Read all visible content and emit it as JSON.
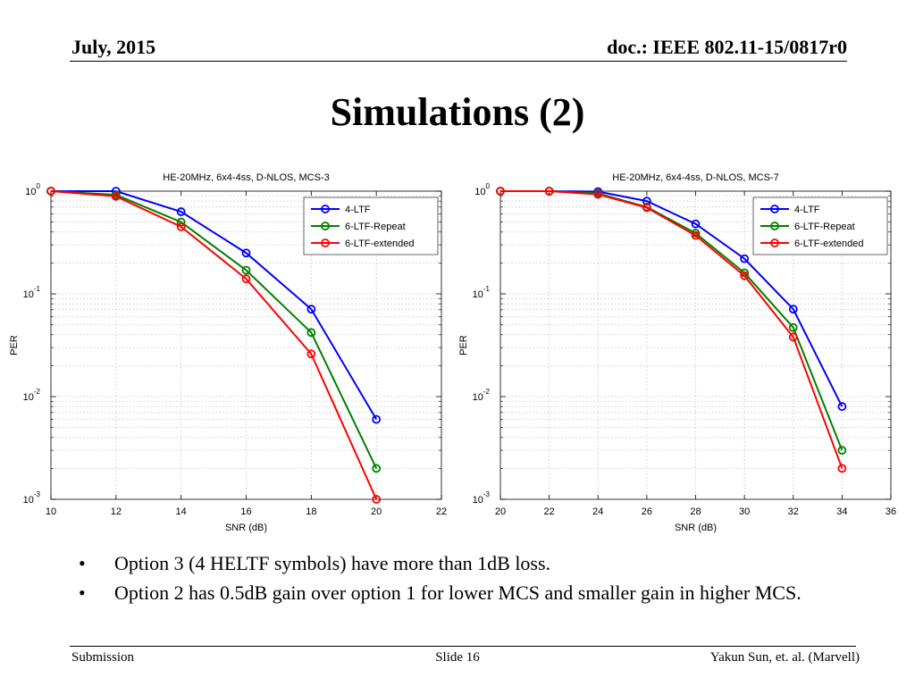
{
  "header": {
    "date": "July, 2015",
    "doc": "doc.: IEEE 802.11-15/0817r0"
  },
  "title": "Simulations (2)",
  "bullets": [
    "Option 3 (4 HELTF symbols) have more than 1dB loss.",
    "Option 2 has 0.5dB gain over option 1 for lower MCS and smaller gain in higher MCS."
  ],
  "bullet_symbol": "•",
  "footer": {
    "left": "Submission",
    "center": "Slide 16",
    "right": "Yakun Sun, et. al. (Marvell)"
  },
  "colors": {
    "4-LTF": "#0000ff",
    "6-LTF-Repeat": "#008000",
    "6-LTF-extended": "#ff0000"
  },
  "chart_data": [
    {
      "type": "line",
      "title": "HE-20MHz, 6x4-4ss, D-NLOS, MCS-3",
      "xlabel": "SNR (dB)",
      "ylabel": "PER",
      "xlim": [
        10,
        22
      ],
      "ylim": [
        0.001,
        1
      ],
      "yscale": "log",
      "xticks": [
        "10",
        "12",
        "14",
        "16",
        "18",
        "20",
        "22"
      ],
      "yticks": [
        {
          "base": "10",
          "exp": "0",
          "value": 1
        },
        {
          "base": "10",
          "exp": "-1",
          "value": 0.1
        },
        {
          "base": "10",
          "exp": "-2",
          "value": 0.01
        },
        {
          "base": "10",
          "exp": "-3",
          "value": 0.001
        }
      ],
      "grid": true,
      "legend": "top-right",
      "x": [
        10,
        12,
        14,
        16,
        18,
        20
      ],
      "series": [
        {
          "name": "4-LTF",
          "color": "#0000ff",
          "values": [
            1.0,
            1.0,
            0.63,
            0.25,
            0.071,
            0.006
          ]
        },
        {
          "name": "6-LTF-Repeat",
          "color": "#008000",
          "values": [
            1.0,
            0.92,
            0.5,
            0.17,
            0.042,
            0.002
          ]
        },
        {
          "name": "6-LTF-extended",
          "color": "#ff0000",
          "values": [
            1.0,
            0.89,
            0.45,
            0.14,
            0.026,
            0.001
          ]
        }
      ]
    },
    {
      "type": "line",
      "title": "HE-20MHz, 6x4-4ss, D-NLOS, MCS-7",
      "xlabel": "SNR (dB)",
      "ylabel": "PER",
      "xlim": [
        20,
        36
      ],
      "ylim": [
        0.001,
        1
      ],
      "yscale": "log",
      "xticks": [
        "20",
        "22",
        "24",
        "26",
        "28",
        "30",
        "32",
        "34",
        "36"
      ],
      "yticks": [
        {
          "base": "10",
          "exp": "0",
          "value": 1
        },
        {
          "base": "10",
          "exp": "-1",
          "value": 0.1
        },
        {
          "base": "10",
          "exp": "-2",
          "value": 0.01
        },
        {
          "base": "10",
          "exp": "-3",
          "value": 0.001
        }
      ],
      "grid": true,
      "legend": "top-right",
      "x": [
        20,
        22,
        24,
        26,
        28,
        30,
        32,
        34
      ],
      "series": [
        {
          "name": "4-LTF",
          "color": "#0000ff",
          "values": [
            1.0,
            1.0,
            0.99,
            0.8,
            0.48,
            0.22,
            0.071,
            0.008
          ]
        },
        {
          "name": "6-LTF-Repeat",
          "color": "#008000",
          "values": [
            1.0,
            1.0,
            0.95,
            0.7,
            0.39,
            0.16,
            0.047,
            0.003
          ]
        },
        {
          "name": "6-LTF-extended",
          "color": "#ff0000",
          "values": [
            1.0,
            1.0,
            0.93,
            0.69,
            0.37,
            0.15,
            0.038,
            0.002
          ]
        }
      ]
    }
  ]
}
